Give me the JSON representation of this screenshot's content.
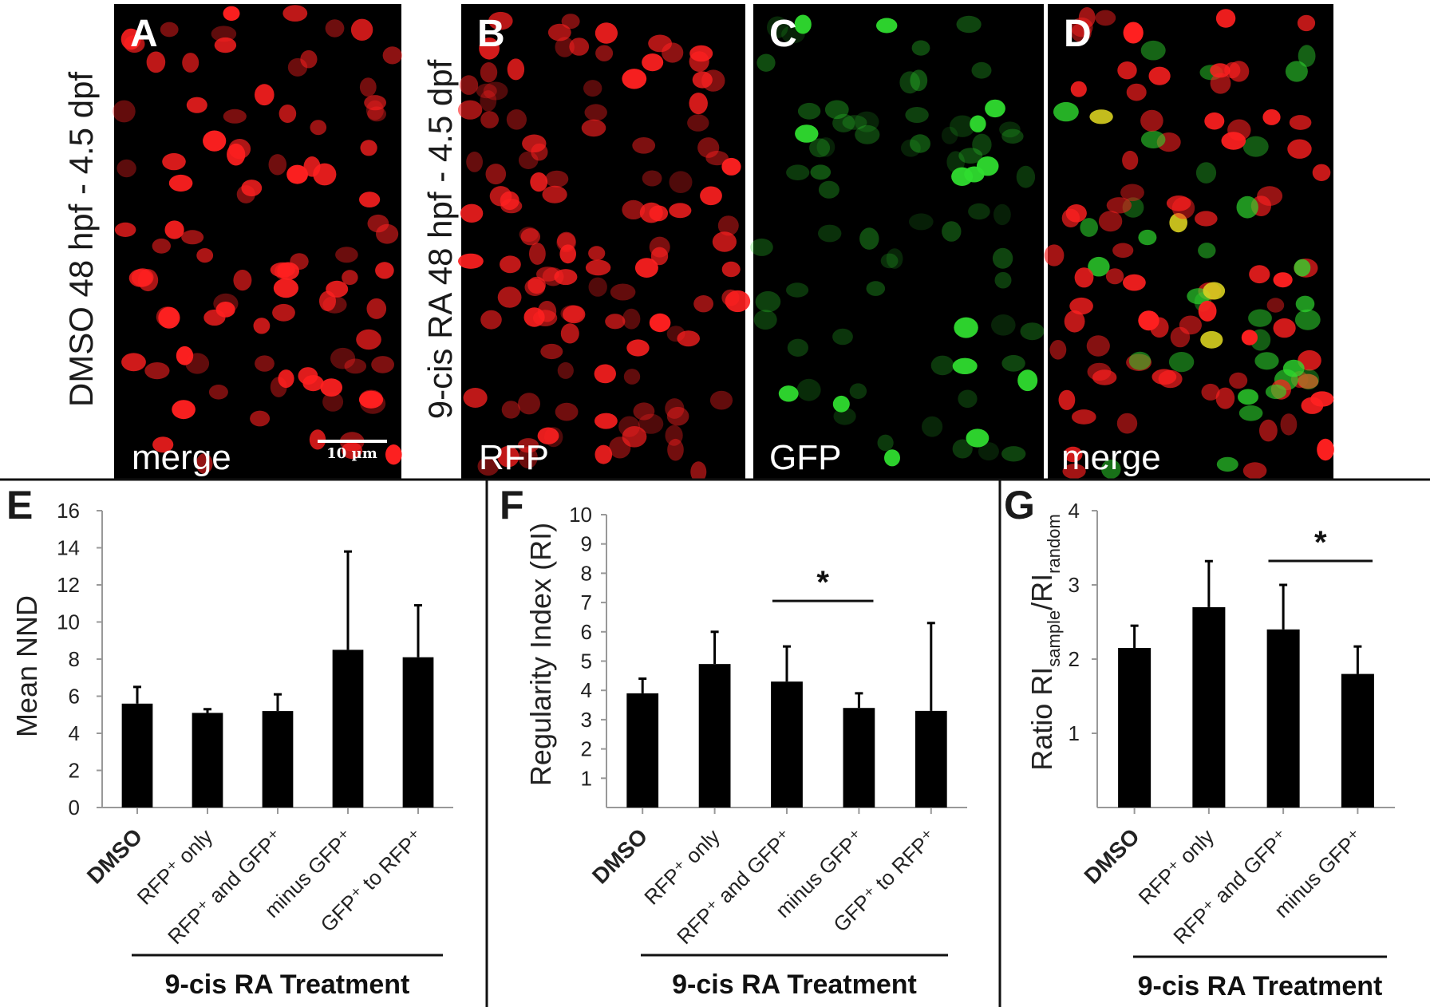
{
  "figure": {
    "panels": [
      {
        "letter": "A",
        "channel": "merge",
        "condition": "DMSO 48 hpf - 4.5 dpf",
        "scale_bar": "10 µm"
      },
      {
        "letter": "B",
        "channel": "RFP",
        "condition": "9-cis RA 48 hpf - 4.5 dpf"
      },
      {
        "letter": "C",
        "channel": "GFP"
      },
      {
        "letter": "D",
        "channel": "merge"
      }
    ],
    "colors": {
      "rfp": "#ff2020",
      "gfp": "#2fdc2f",
      "yellow": "#d8d020",
      "bar": "#000000"
    }
  },
  "chart_data": [
    {
      "type": "bar",
      "panel": "E",
      "ylabel": "Mean NND",
      "ylim": [
        0,
        16
      ],
      "yticks": [
        "0",
        "2",
        "4",
        "6",
        "8",
        "10",
        "12",
        "14",
        "16"
      ],
      "categories": [
        "DMSO",
        "RFP⁺ only",
        "RFP⁺ and GFP⁺",
        "minus GFP⁺",
        "GFP⁺ to RFP⁺"
      ],
      "values": [
        5.6,
        5.1,
        5.2,
        8.5,
        8.1
      ],
      "errors": [
        0.9,
        0.2,
        0.9,
        5.3,
        2.8
      ],
      "group_label": "9-cis RA Treatment",
      "significance": []
    },
    {
      "type": "bar",
      "panel": "F",
      "ylabel": "Regularity Index (RI)",
      "ylim": [
        0,
        10
      ],
      "yticks": [
        "1",
        "2",
        "3",
        "4",
        "5",
        "6",
        "7",
        "8",
        "9",
        "10"
      ],
      "categories": [
        "DMSO",
        "RFP⁺ only",
        "RFP⁺ and GFP⁺",
        "minus GFP⁺",
        "GFP⁺ to RFP⁺"
      ],
      "values": [
        3.9,
        4.9,
        4.3,
        3.4,
        3.3
      ],
      "errors": [
        0.5,
        1.1,
        1.2,
        0.5,
        3.0
      ],
      "group_label": "9-cis RA Treatment",
      "significance": [
        {
          "from": 2,
          "to": 3,
          "label": "*"
        }
      ]
    },
    {
      "type": "bar",
      "panel": "G",
      "ylabel_main": "Ratio RI",
      "ylabel_sub1": "sample",
      "ylabel_mid": "/RI",
      "ylabel_sub2": "random",
      "ylim": [
        0,
        4
      ],
      "yticks": [
        "1",
        "2",
        "3",
        "4"
      ],
      "categories": [
        "DMSO",
        "RFP⁺ only",
        "RFP⁺ and GFP⁺",
        "minus GFP⁺"
      ],
      "values": [
        2.15,
        2.7,
        2.4,
        1.8
      ],
      "errors": [
        0.3,
        0.62,
        0.6,
        0.37
      ],
      "group_label": "9-cis RA Treatment",
      "significance": [
        {
          "from": 2,
          "to": 3,
          "label": "*"
        }
      ]
    }
  ]
}
